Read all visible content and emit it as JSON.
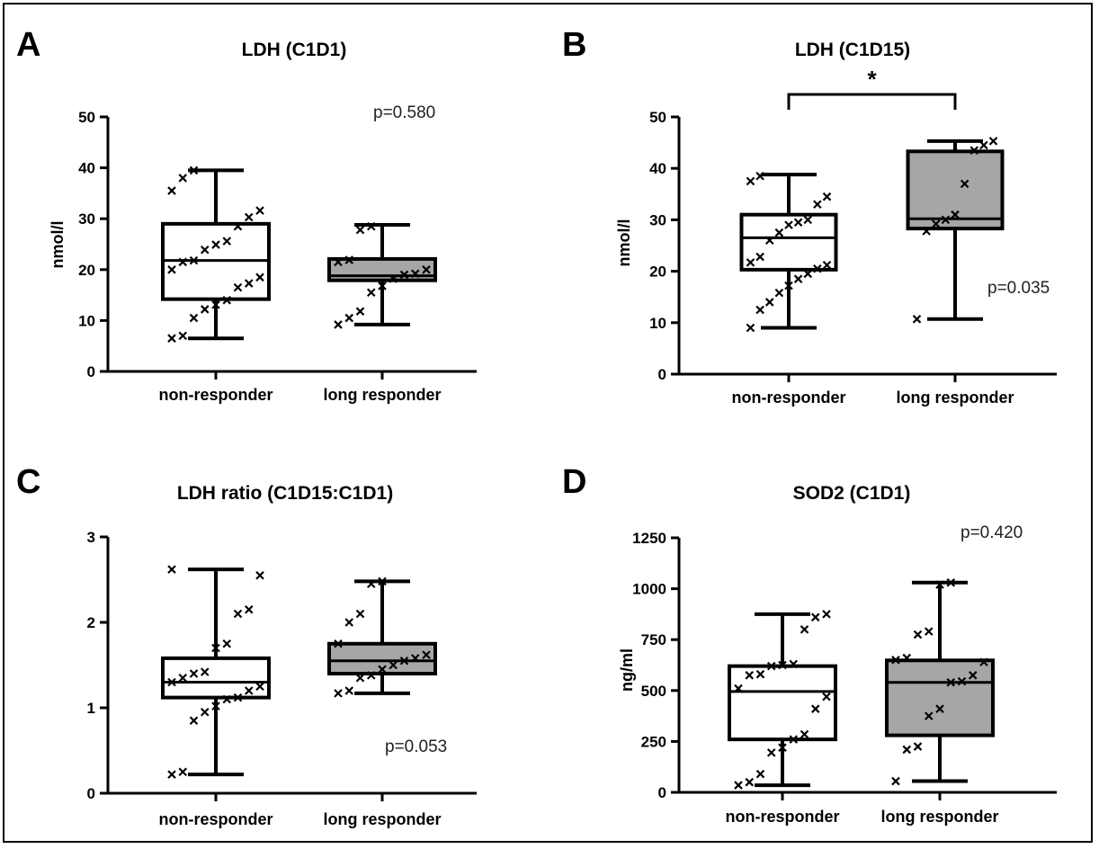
{
  "colors": {
    "box_nonresponder": "#ffffff",
    "box_longresponder": "#a6a6a8",
    "ink": "#000000"
  },
  "chart_data": [
    {
      "type": "box",
      "panel": "A",
      "title": "LDH (C1D1)",
      "ylabel": "nmol/l",
      "ylim": [
        0,
        50
      ],
      "yticks": [
        "0",
        "10",
        "20",
        "30",
        "40",
        "50"
      ],
      "categories": [
        "non-responder",
        "long responder"
      ],
      "p_value": "p=0.580",
      "significance": "",
      "boxes": [
        {
          "min": 6.5,
          "q1": 14.2,
          "median": 21.8,
          "q3": 29.0,
          "max": 39.5
        },
        {
          "min": 9.2,
          "q1": 17.9,
          "median": 18.8,
          "q3": 22.1,
          "max": 28.8
        }
      ],
      "points": [
        [
          6.5,
          7.0,
          10.5,
          12.2,
          13.1,
          14.0,
          16.5,
          17.3,
          18.5,
          20.0,
          21.5,
          21.8,
          23.9,
          24.9,
          25.6,
          28.5,
          30.3,
          31.6,
          35.5,
          38.0,
          39.5
        ],
        [
          9.2,
          10.5,
          11.8,
          15.5,
          16.8,
          18.2,
          19.0,
          19.2,
          20.0,
          21.5,
          21.9,
          27.8,
          28.5
        ]
      ]
    },
    {
      "type": "box",
      "panel": "B",
      "title": "LDH  (C1D15)",
      "ylabel": "nmol/l",
      "ylim": [
        0,
        50
      ],
      "yticks": [
        "0",
        "10",
        "20",
        "30",
        "40",
        "50"
      ],
      "categories": [
        "non-responder",
        "long responder"
      ],
      "p_value": "p=0.035",
      "significance": "*",
      "boxes": [
        {
          "min": 9.0,
          "q1": 20.3,
          "median": 26.5,
          "q3": 31.0,
          "max": 38.8
        },
        {
          "min": 10.7,
          "q1": 28.3,
          "median": 30.2,
          "q3": 43.3,
          "max": 45.3
        }
      ],
      "points": [
        [
          9.0,
          12.5,
          14.0,
          15.8,
          17.2,
          18.5,
          19.5,
          20.5,
          21.2,
          21.7,
          22.8,
          26.0,
          27.5,
          29.0,
          29.5,
          30.0,
          33.0,
          34.5,
          37.5,
          38.5
        ],
        [
          10.7,
          27.8,
          29.2,
          30.0,
          31.0,
          37.0,
          43.5,
          44.5,
          45.3
        ]
      ]
    },
    {
      "type": "box",
      "panel": "C",
      "title": "LDH ratio (C1D15:C1D1)",
      "ylabel": "",
      "ylim": [
        0,
        3
      ],
      "yticks": [
        "0",
        "1",
        "2",
        "3"
      ],
      "categories": [
        "non-responder",
        "long responder"
      ],
      "p_value": "p=0.053",
      "significance": "",
      "boxes": [
        {
          "min": 0.22,
          "q1": 1.12,
          "median": 1.3,
          "q3": 1.58,
          "max": 2.62
        },
        {
          "min": 1.17,
          "q1": 1.4,
          "median": 1.55,
          "q3": 1.75,
          "max": 2.48
        }
      ],
      "points": [
        [
          0.22,
          0.25,
          0.85,
          0.95,
          1.02,
          1.1,
          1.12,
          1.2,
          1.25,
          1.3,
          1.35,
          1.4,
          1.42,
          1.7,
          1.75,
          2.1,
          2.15,
          2.55,
          2.62
        ],
        [
          1.17,
          1.2,
          1.35,
          1.38,
          1.45,
          1.5,
          1.55,
          1.58,
          1.62,
          1.75,
          2.0,
          2.1,
          2.45,
          2.48
        ]
      ]
    },
    {
      "type": "box",
      "panel": "D",
      "title": "SOD2 (C1D1)",
      "ylabel": "ng/ml",
      "ylim": [
        0,
        1250
      ],
      "yticks": [
        "0",
        "250",
        "500",
        "750",
        "1000",
        "1250"
      ],
      "categories": [
        "non-responder",
        "long responder"
      ],
      "p_value": "p=0.420",
      "significance": "",
      "boxes": [
        {
          "min": 35,
          "q1": 260,
          "median": 495,
          "q3": 620,
          "max": 875
        },
        {
          "min": 55,
          "q1": 280,
          "median": 540,
          "q3": 648,
          "max": 1030
        }
      ],
      "points": [
        [
          35,
          50,
          90,
          195,
          220,
          260,
          285,
          410,
          470,
          510,
          575,
          580,
          620,
          625,
          630,
          800,
          860,
          875
        ],
        [
          55,
          210,
          225,
          375,
          410,
          540,
          545,
          575,
          640,
          650,
          660,
          775,
          790,
          1020,
          1030
        ]
      ]
    }
  ]
}
